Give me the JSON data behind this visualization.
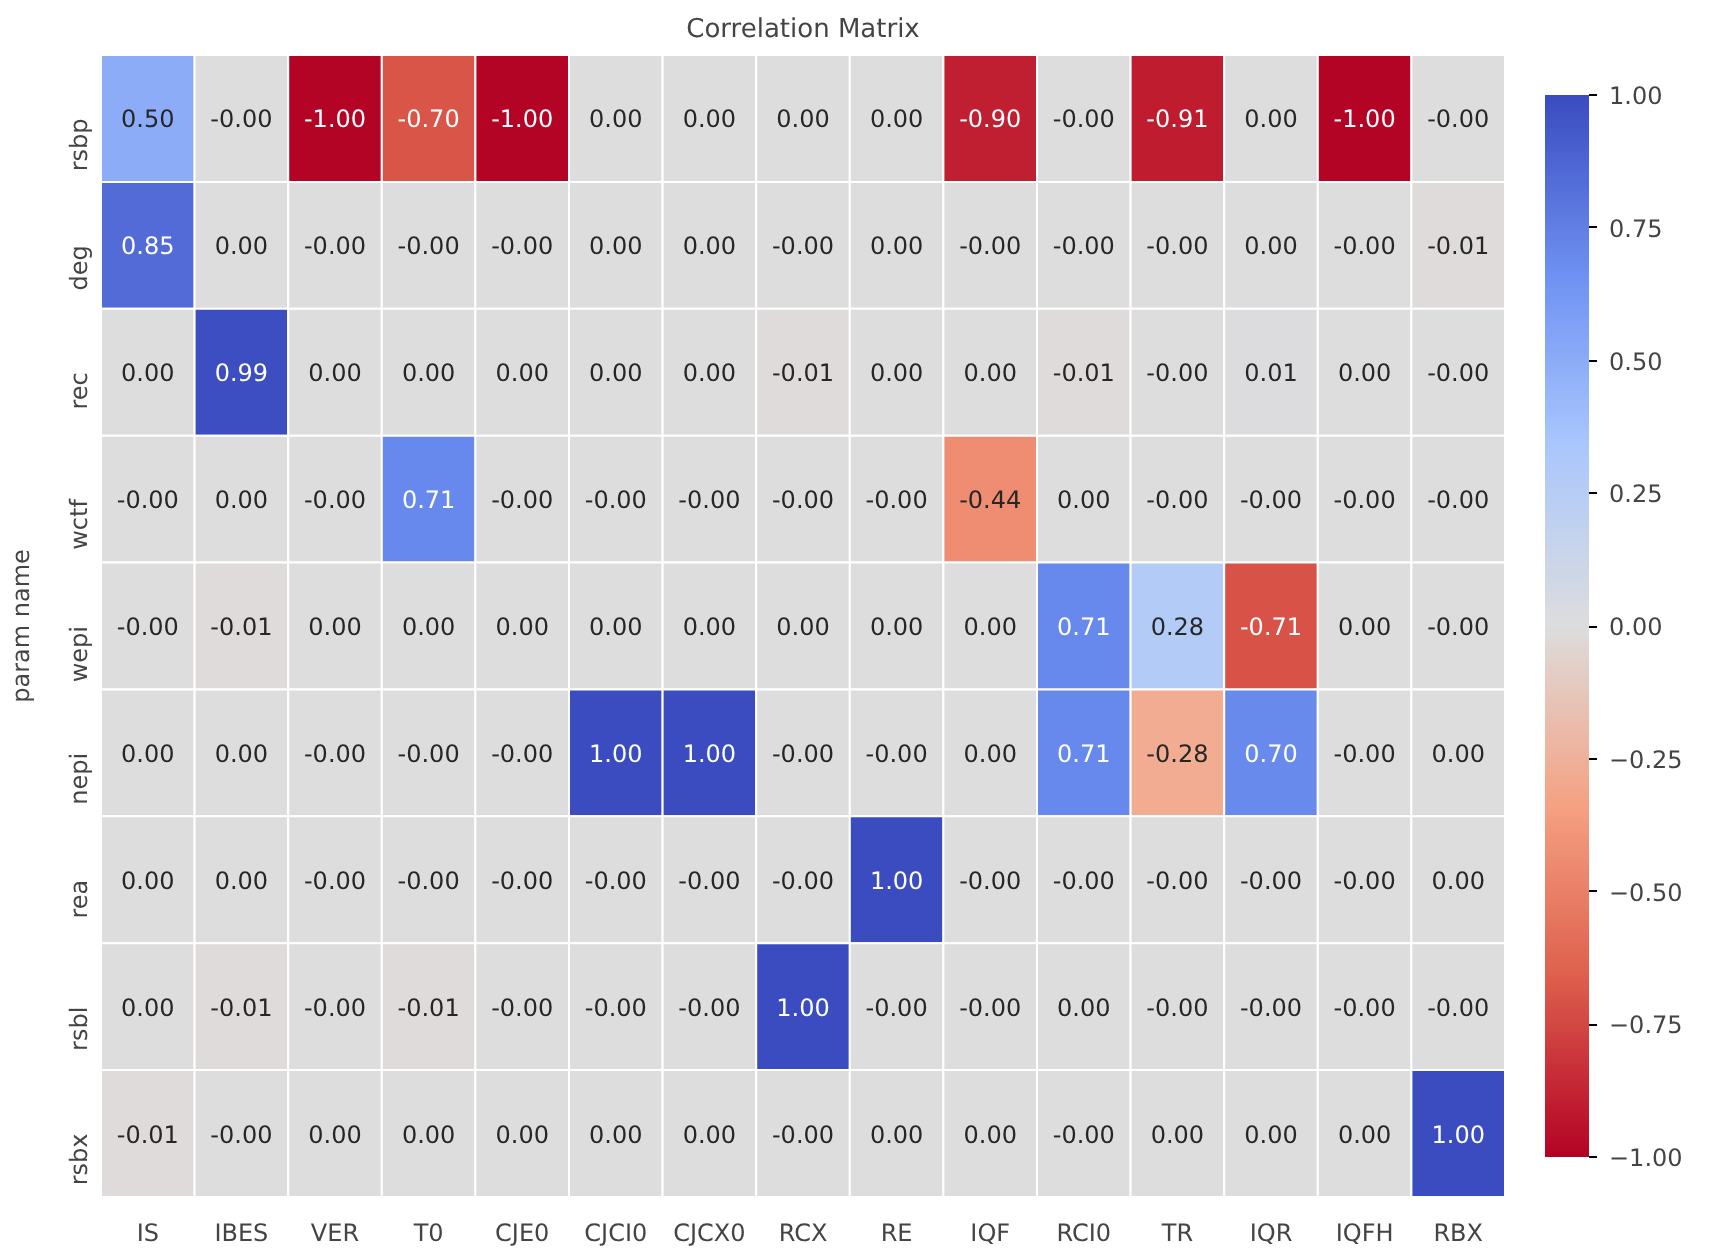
{
  "chart_data": {
    "type": "heatmap",
    "title": "Correlation Matrix",
    "ylabel": "param name",
    "categories": [
      "IS",
      "IBES",
      "VER",
      "T0",
      "CJE0",
      "CJCI0",
      "CJCX0",
      "RCX",
      "RE",
      "IQF",
      "RCI0",
      "TR",
      "IQR",
      "IQFH",
      "RBX"
    ],
    "y_categories": [
      "rsbp",
      "deg",
      "rec",
      "wctf",
      "wepi",
      "nepi",
      "rea",
      "rsbl",
      "rsbx"
    ],
    "cells": [
      [
        0.5,
        0,
        -1,
        -0.7,
        -1,
        0,
        0,
        0,
        0,
        -0.9,
        0,
        -0.91,
        0,
        -1,
        0
      ],
      [
        0.85,
        0,
        0,
        0,
        0,
        0,
        0,
        0,
        0,
        0,
        0,
        0,
        0,
        0,
        -0.01
      ],
      [
        0,
        0.99,
        0,
        0,
        0,
        0,
        0,
        -0.01,
        0,
        0,
        -0.01,
        0,
        0.01,
        0,
        0
      ],
      [
        0,
        0,
        0,
        0.71,
        0,
        0,
        0,
        0,
        0,
        -0.44,
        0,
        0,
        0,
        0,
        0
      ],
      [
        0,
        -0.01,
        0,
        0,
        0,
        0,
        0,
        0,
        0,
        0,
        0.71,
        0.28,
        -0.71,
        0,
        0
      ],
      [
        0,
        0,
        0,
        0,
        0,
        1,
        1,
        0,
        0,
        0,
        0.71,
        -0.28,
        0.7,
        0,
        0
      ],
      [
        0,
        0,
        0,
        0,
        0,
        0,
        0,
        0,
        1,
        0,
        0,
        0,
        0,
        0,
        0
      ],
      [
        0,
        -0.01,
        0,
        -0.01,
        0,
        0,
        0,
        1,
        0,
        0,
        0,
        0,
        0,
        0,
        0
      ],
      [
        -0.01,
        0,
        0,
        0,
        0,
        0,
        0,
        0,
        0,
        0,
        0,
        0,
        0,
        0,
        1
      ]
    ],
    "cell_labels": [
      [
        "0.50",
        "-0.00",
        "-1.00",
        "-0.70",
        "-1.00",
        "0.00",
        "0.00",
        "0.00",
        "0.00",
        "-0.90",
        "-0.00",
        "-0.91",
        "0.00",
        "-1.00",
        "-0.00"
      ],
      [
        "0.85",
        "0.00",
        "-0.00",
        "-0.00",
        "-0.00",
        "0.00",
        "0.00",
        "-0.00",
        "0.00",
        "-0.00",
        "-0.00",
        "-0.00",
        "0.00",
        "-0.00",
        "-0.01"
      ],
      [
        "0.00",
        "0.99",
        "0.00",
        "0.00",
        "0.00",
        "0.00",
        "0.00",
        "-0.01",
        "0.00",
        "0.00",
        "-0.01",
        "-0.00",
        "0.01",
        "0.00",
        "-0.00"
      ],
      [
        "-0.00",
        "0.00",
        "-0.00",
        "0.71",
        "-0.00",
        "-0.00",
        "-0.00",
        "-0.00",
        "-0.00",
        "-0.44",
        "0.00",
        "-0.00",
        "-0.00",
        "-0.00",
        "-0.00"
      ],
      [
        "-0.00",
        "-0.01",
        "0.00",
        "0.00",
        "0.00",
        "0.00",
        "0.00",
        "0.00",
        "0.00",
        "0.00",
        "0.71",
        "0.28",
        "-0.71",
        "0.00",
        "-0.00"
      ],
      [
        "0.00",
        "0.00",
        "-0.00",
        "-0.00",
        "-0.00",
        "1.00",
        "1.00",
        "-0.00",
        "-0.00",
        "0.00",
        "0.71",
        "-0.28",
        "0.70",
        "-0.00",
        "0.00"
      ],
      [
        "0.00",
        "0.00",
        "-0.00",
        "-0.00",
        "-0.00",
        "-0.00",
        "-0.00",
        "-0.00",
        "1.00",
        "-0.00",
        "-0.00",
        "-0.00",
        "-0.00",
        "-0.00",
        "0.00"
      ],
      [
        "0.00",
        "-0.01",
        "-0.00",
        "-0.01",
        "-0.00",
        "-0.00",
        "-0.00",
        "1.00",
        "-0.00",
        "-0.00",
        "0.00",
        "-0.00",
        "-0.00",
        "-0.00",
        "-0.00"
      ],
      [
        "-0.01",
        "-0.00",
        "0.00",
        "0.00",
        "0.00",
        "0.00",
        "0.00",
        "-0.00",
        "0.00",
        "0.00",
        "-0.00",
        "0.00",
        "0.00",
        "0.00",
        "1.00"
      ]
    ],
    "clim": [
      -1,
      1
    ],
    "cticks": [
      {
        "value": -1,
        "label": "−1.00"
      },
      {
        "value": -0.75,
        "label": "−0.75"
      },
      {
        "value": -0.5,
        "label": "−0.50"
      },
      {
        "value": -0.25,
        "label": "−0.25"
      },
      {
        "value": 0,
        "label": "0.00"
      },
      {
        "value": 0.25,
        "label": "0.25"
      },
      {
        "value": 0.5,
        "label": "0.50"
      },
      {
        "value": 0.75,
        "label": "0.75"
      },
      {
        "value": 1,
        "label": "1.00"
      }
    ]
  }
}
